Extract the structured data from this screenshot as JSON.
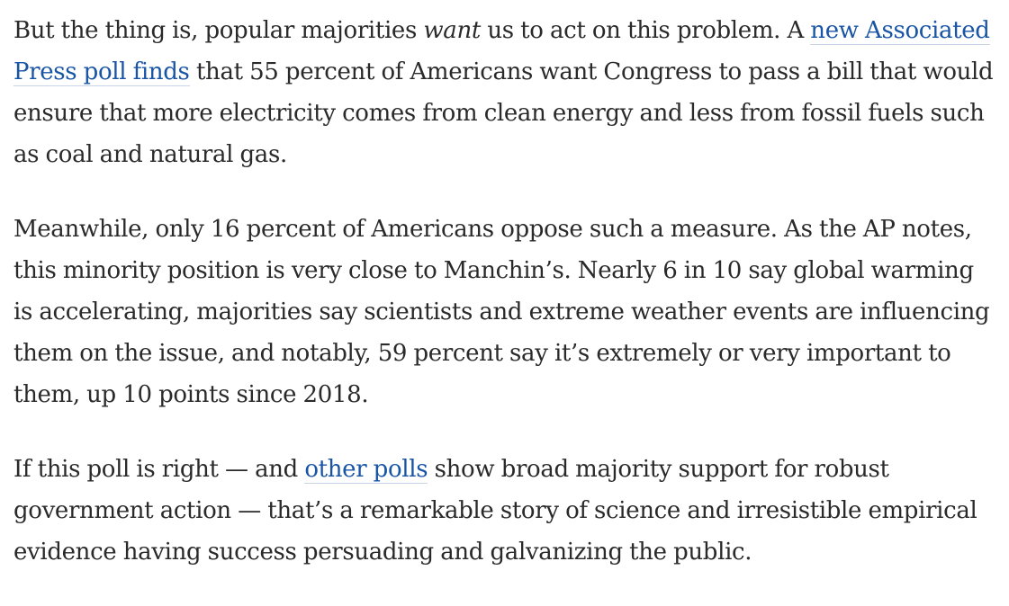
{
  "article": {
    "p1": {
      "before_emphasis": "But the thing is, popular majorities ",
      "emphasis": "want",
      "middle": " us to act on this problem. A ",
      "link_text": "new Associated Press poll finds",
      "after_link": " that 55 percent of Americans want Congress to pass a bill that would ensure that more electricity comes from clean energy and less from fossil fuels such as coal and natural gas."
    },
    "p2": {
      "text": "Meanwhile, only 16 percent of Americans oppose such a measure. As the AP notes, this minority position is very close to Manchin’s. Nearly 6 in 10 say global warming is accelerating, majorities say scientists and extreme weather events are influencing them on the issue, and notably, 59 percent say it’s extremely or very important to them, up 10 points since 2018."
    },
    "p3": {
      "before_link": "If this poll is right — and ",
      "link_text": "other polls",
      "after_link": " show broad majority support for robust government action — that’s a remarkable story of science and irresistible empirical evidence having success persuading and galvanizing the public."
    }
  },
  "colors": {
    "text": "#2a2a2a",
    "link": "#1955a5",
    "background": "#ffffff"
  }
}
